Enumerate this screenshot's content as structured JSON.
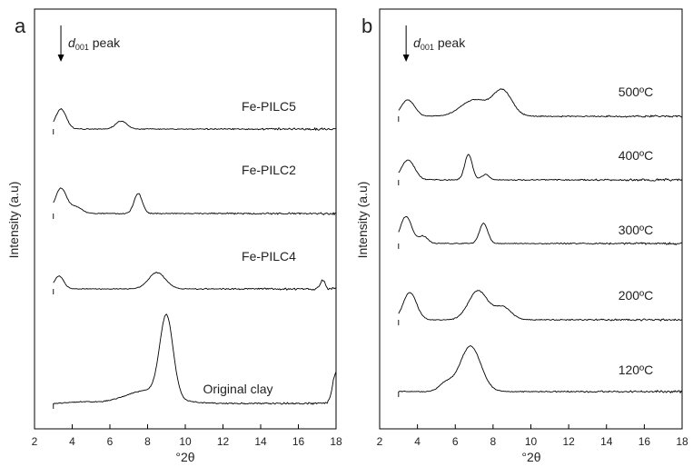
{
  "chart_data": [
    {
      "type": "line",
      "panel_label": "a",
      "xlabel": "°2θ",
      "ylabel": "Intensity (a.u)",
      "xlim": [
        2,
        18
      ],
      "x_ticks": [
        "2",
        "4",
        "6",
        "8",
        "10",
        "12",
        "14",
        "16",
        "18"
      ],
      "annotation": {
        "text": "d",
        "subscript": "001",
        "suffix": " peak",
        "x": 3.4
      },
      "series": [
        {
          "name": "Fe-PILC5",
          "x_start": 3,
          "x_end": 18,
          "peaks": [
            {
              "x": 3.4,
              "h": 0.55,
              "w": 0.28
            },
            {
              "x": 6.6,
              "h": 0.22,
              "w": 0.3
            }
          ]
        },
        {
          "name": "Fe-PILC2",
          "x_start": 3,
          "x_end": 18,
          "peaks": [
            {
              "x": 3.4,
              "h": 0.7,
              "w": 0.3
            },
            {
              "x": 4.2,
              "h": 0.18,
              "w": 0.3
            },
            {
              "x": 7.5,
              "h": 0.55,
              "w": 0.22
            }
          ]
        },
        {
          "name": "Fe-PILC4",
          "x_start": 3,
          "x_end": 18,
          "peaks": [
            {
              "x": 3.3,
              "h": 0.35,
              "w": 0.25
            },
            {
              "x": 8.5,
              "h": 0.45,
              "w": 0.45
            },
            {
              "x": 17.3,
              "h": 0.25,
              "w": 0.12
            }
          ]
        },
        {
          "name": "Original clay",
          "x_start": 3,
          "x_end": 18,
          "peaks": [
            {
              "x": 4.5,
              "h": 0.04,
              "w": 0.6
            },
            {
              "x": 8.0,
              "h": 0.35,
              "w": 1.2
            },
            {
              "x": 9.0,
              "h": 2.2,
              "w": 0.35
            },
            {
              "x": 18.0,
              "h": 0.85,
              "w": 0.18
            }
          ]
        }
      ]
    },
    {
      "type": "line",
      "panel_label": "b",
      "xlabel": "°2θ",
      "ylabel": "Intensity (a.u)",
      "xlim": [
        2,
        18
      ],
      "x_ticks": [
        "2",
        "4",
        "6",
        "8",
        "10",
        "12",
        "14",
        "16",
        "18"
      ],
      "annotation": {
        "text": "d",
        "subscript": "001",
        "suffix": " peak",
        "x": 3.4
      },
      "series": [
        {
          "name": "500ºC",
          "x_start": 3,
          "x_end": 18,
          "peaks": [
            {
              "x": 3.5,
              "h": 0.45,
              "w": 0.35
            },
            {
              "x": 7.0,
              "h": 0.45,
              "w": 0.7
            },
            {
              "x": 8.5,
              "h": 0.7,
              "w": 0.5
            }
          ]
        },
        {
          "name": "400ºC",
          "x_start": 3,
          "x_end": 18,
          "peaks": [
            {
              "x": 3.5,
              "h": 0.55,
              "w": 0.35
            },
            {
              "x": 6.7,
              "h": 0.7,
              "w": 0.2
            },
            {
              "x": 7.6,
              "h": 0.15,
              "w": 0.2
            }
          ]
        },
        {
          "name": "300ºC",
          "x_start": 3,
          "x_end": 18,
          "peaks": [
            {
              "x": 3.4,
              "h": 0.75,
              "w": 0.3
            },
            {
              "x": 4.3,
              "h": 0.2,
              "w": 0.25
            },
            {
              "x": 7.5,
              "h": 0.55,
              "w": 0.22
            }
          ]
        },
        {
          "name": "200ºC",
          "x_start": 3,
          "x_end": 18,
          "peaks": [
            {
              "x": 3.6,
              "h": 0.75,
              "w": 0.35
            },
            {
              "x": 7.2,
              "h": 0.8,
              "w": 0.5
            },
            {
              "x": 8.5,
              "h": 0.35,
              "w": 0.45
            }
          ]
        },
        {
          "name": "120ºC",
          "x_start": 3,
          "x_end": 18,
          "peaks": [
            {
              "x": 5.5,
              "h": 0.22,
              "w": 0.35
            },
            {
              "x": 6.8,
              "h": 1.25,
              "w": 0.55
            }
          ]
        }
      ]
    }
  ]
}
